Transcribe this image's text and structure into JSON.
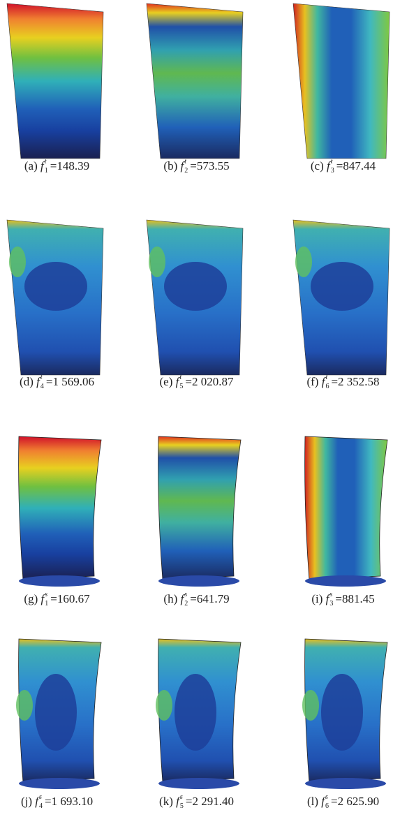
{
  "figure": {
    "symbol": "f",
    "equals": "=",
    "panels": [
      {
        "label": "(a)",
        "sup": "t",
        "sub": "1",
        "value": "148.39"
      },
      {
        "label": "(b)",
        "sup": "t",
        "sub": "2",
        "value": "573.55"
      },
      {
        "label": "(c)",
        "sup": "t",
        "sub": "3",
        "value": "847.44"
      },
      {
        "label": "(d)",
        "sup": "t",
        "sub": "4",
        "value": "1 569.06"
      },
      {
        "label": "(e)",
        "sup": "t",
        "sub": "5",
        "value": "2 020.87"
      },
      {
        "label": "(f)",
        "sup": "t",
        "sub": "6",
        "value": "2 352.58"
      },
      {
        "label": "(g)",
        "sup": "s",
        "sub": "1",
        "value": "160.67"
      },
      {
        "label": "(h)",
        "sup": "s",
        "sub": "2",
        "value": "641.79"
      },
      {
        "label": "(i)",
        "sup": "s",
        "sub": "3",
        "value": "881.45"
      },
      {
        "label": "(j)",
        "sup": "s",
        "sub": "4",
        "value": "1 693.10"
      },
      {
        "label": "(k)",
        "sup": "s",
        "sub": "5",
        "value": "2 291.40"
      },
      {
        "label": "(l)",
        "sup": "s",
        "sub": "6",
        "value": "2 625.90"
      }
    ]
  }
}
